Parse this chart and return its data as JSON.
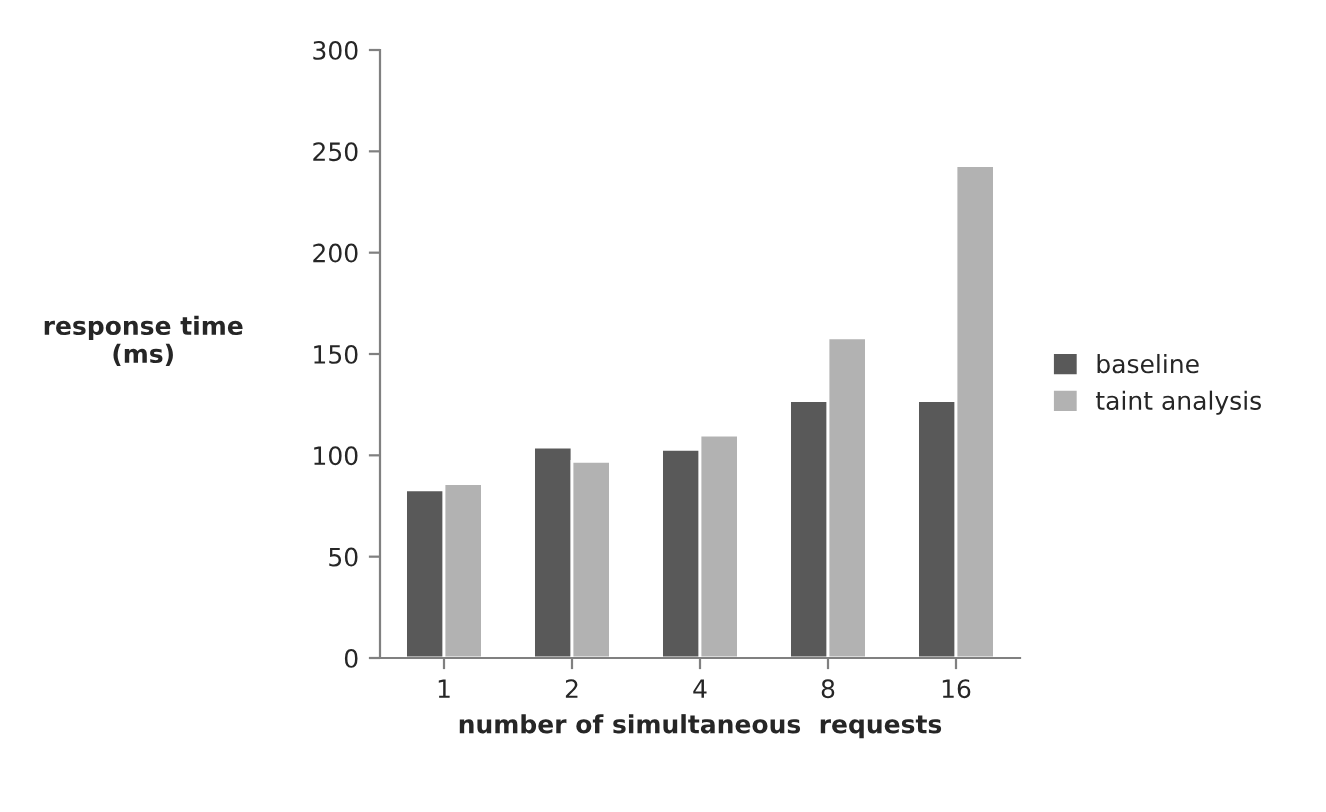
{
  "chart_data": {
    "type": "bar",
    "xlabel": "number of simultaneous  requests",
    "ylabel": "response time\n(ms)",
    "categories": [
      "1",
      "2",
      "4",
      "8",
      "16"
    ],
    "series": [
      {
        "name": "baseline",
        "color": "#595959",
        "values": [
          83,
          104,
          103,
          127,
          127
        ]
      },
      {
        "name": "taint analysis",
        "color": "#b2b2b2",
        "values": [
          86,
          97,
          110,
          158,
          243
        ]
      }
    ],
    "ylim": [
      0,
      300
    ],
    "yticks": [
      0,
      50,
      100,
      150,
      200,
      250,
      300
    ],
    "grid": false,
    "legend": "right"
  }
}
